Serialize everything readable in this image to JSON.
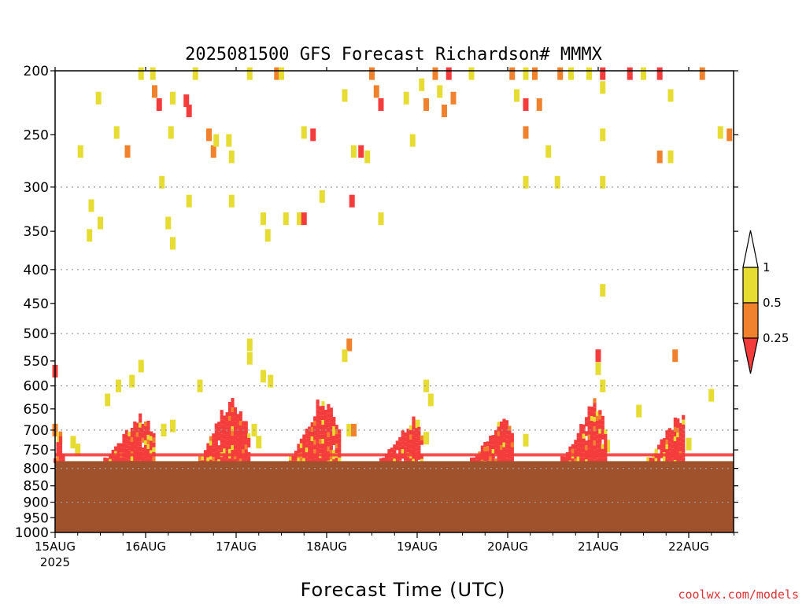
{
  "chart_data": {
    "type": "heatmap",
    "title": "2025081500 GFS Forecast Richardson# MMMX",
    "xlabel": "Forecast Time (UTC)",
    "ylabel": "",
    "x_ticks": [
      {
        "label": "15AUG",
        "sub": "2025",
        "day": 0
      },
      {
        "label": "16AUG",
        "day": 1
      },
      {
        "label": "17AUG",
        "day": 2
      },
      {
        "label": "18AUG",
        "day": 3
      },
      {
        "label": "19AUG",
        "day": 4
      },
      {
        "label": "20AUG",
        "day": 5
      },
      {
        "label": "21AUG",
        "day": 6
      },
      {
        "label": "22AUG",
        "day": 7
      }
    ],
    "xlim_days": [
      0,
      7.5
    ],
    "ylim_hpa": [
      1000,
      200
    ],
    "y_scale": "log-pressure",
    "y_ticks": [
      200,
      250,
      300,
      350,
      400,
      450,
      500,
      550,
      600,
      650,
      700,
      750,
      800,
      850,
      900,
      950,
      1000
    ],
    "grid_levels": [
      300,
      400,
      500,
      600,
      700,
      800,
      900,
      1000
    ],
    "surface_hpa": 780,
    "colorbar": {
      "levels": [
        "0.25",
        "0.5",
        "1"
      ],
      "bins": [
        {
          "range": "< 0.25",
          "color": "#f53c3c"
        },
        {
          "range": "0.25 - 0.5",
          "color": "#f0822d"
        },
        {
          "range": "0.5 - 1",
          "color": "#e6dc32"
        },
        {
          "range": "> 1",
          "color": "#ffffff"
        }
      ]
    },
    "colors": {
      "red": "#f53c3c",
      "orange": "#f0822d",
      "yellow": "#e6dc32",
      "terrain": "#a0522d"
    },
    "cells": [
      {
        "t": 0.95,
        "p": 202,
        "c": "yellow"
      },
      {
        "t": 1.08,
        "p": 202,
        "c": "yellow"
      },
      {
        "t": 1.1,
        "p": 215,
        "c": "orange"
      },
      {
        "t": 1.15,
        "p": 225,
        "c": "red"
      },
      {
        "t": 1.3,
        "p": 220,
        "c": "yellow"
      },
      {
        "t": 1.45,
        "p": 222,
        "c": "red"
      },
      {
        "t": 1.48,
        "p": 230,
        "c": "red"
      },
      {
        "t": 1.55,
        "p": 202,
        "c": "yellow"
      },
      {
        "t": 1.7,
        "p": 250,
        "c": "orange"
      },
      {
        "t": 1.75,
        "p": 265,
        "c": "orange"
      },
      {
        "t": 1.78,
        "p": 255,
        "c": "yellow"
      },
      {
        "t": 1.92,
        "p": 255,
        "c": "yellow"
      },
      {
        "t": 1.95,
        "p": 270,
        "c": "yellow"
      },
      {
        "t": 2.15,
        "p": 202,
        "c": "yellow"
      },
      {
        "t": 2.45,
        "p": 202,
        "c": "orange"
      },
      {
        "t": 2.5,
        "p": 202,
        "c": "yellow"
      },
      {
        "t": 2.75,
        "p": 248,
        "c": "yellow"
      },
      {
        "t": 2.85,
        "p": 250,
        "c": "red"
      },
      {
        "t": 3.2,
        "p": 218,
        "c": "yellow"
      },
      {
        "t": 3.3,
        "p": 265,
        "c": "yellow"
      },
      {
        "t": 3.38,
        "p": 265,
        "c": "red"
      },
      {
        "t": 3.45,
        "p": 270,
        "c": "yellow"
      },
      {
        "t": 3.5,
        "p": 202,
        "c": "orange"
      },
      {
        "t": 3.55,
        "p": 215,
        "c": "orange"
      },
      {
        "t": 3.6,
        "p": 225,
        "c": "red"
      },
      {
        "t": 3.88,
        "p": 220,
        "c": "yellow"
      },
      {
        "t": 3.95,
        "p": 255,
        "c": "yellow"
      },
      {
        "t": 4.05,
        "p": 210,
        "c": "yellow"
      },
      {
        "t": 4.1,
        "p": 225,
        "c": "orange"
      },
      {
        "t": 4.2,
        "p": 202,
        "c": "orange"
      },
      {
        "t": 4.25,
        "p": 215,
        "c": "yellow"
      },
      {
        "t": 4.3,
        "p": 230,
        "c": "orange"
      },
      {
        "t": 4.35,
        "p": 202,
        "c": "red"
      },
      {
        "t": 4.4,
        "p": 220,
        "c": "orange"
      },
      {
        "t": 4.6,
        "p": 202,
        "c": "yellow"
      },
      {
        "t": 5.05,
        "p": 202,
        "c": "orange"
      },
      {
        "t": 5.2,
        "p": 202,
        "c": "yellow"
      },
      {
        "t": 5.3,
        "p": 202,
        "c": "orange"
      },
      {
        "t": 5.2,
        "p": 225,
        "c": "red"
      },
      {
        "t": 5.2,
        "p": 248,
        "c": "orange"
      },
      {
        "t": 5.35,
        "p": 225,
        "c": "orange"
      },
      {
        "t": 5.1,
        "p": 218,
        "c": "yellow"
      },
      {
        "t": 5.2,
        "p": 295,
        "c": "yellow"
      },
      {
        "t": 5.45,
        "p": 265,
        "c": "yellow"
      },
      {
        "t": 5.55,
        "p": 295,
        "c": "yellow"
      },
      {
        "t": 5.58,
        "p": 202,
        "c": "orange"
      },
      {
        "t": 5.7,
        "p": 202,
        "c": "yellow"
      },
      {
        "t": 5.9,
        "p": 202,
        "c": "yellow"
      },
      {
        "t": 6.05,
        "p": 202,
        "c": "red"
      },
      {
        "t": 6.05,
        "p": 212,
        "c": "yellow"
      },
      {
        "t": 6.05,
        "p": 250,
        "c": "yellow"
      },
      {
        "t": 6.05,
        "p": 295,
        "c": "yellow"
      },
      {
        "t": 6.35,
        "p": 202,
        "c": "red"
      },
      {
        "t": 6.5,
        "p": 202,
        "c": "yellow"
      },
      {
        "t": 6.68,
        "p": 202,
        "c": "red"
      },
      {
        "t": 6.68,
        "p": 270,
        "c": "orange"
      },
      {
        "t": 6.8,
        "p": 270,
        "c": "yellow"
      },
      {
        "t": 6.8,
        "p": 218,
        "c": "yellow"
      },
      {
        "t": 7.15,
        "p": 202,
        "c": "orange"
      },
      {
        "t": 7.35,
        "p": 248,
        "c": "yellow"
      },
      {
        "t": 7.45,
        "p": 250,
        "c": "orange"
      },
      {
        "t": 0.28,
        "p": 265,
        "c": "yellow"
      },
      {
        "t": 0.48,
        "p": 220,
        "c": "yellow"
      },
      {
        "t": 0.68,
        "p": 248,
        "c": "yellow"
      },
      {
        "t": 0.8,
        "p": 265,
        "c": "orange"
      },
      {
        "t": 1.18,
        "p": 295,
        "c": "yellow"
      },
      {
        "t": 1.28,
        "p": 248,
        "c": "yellow"
      },
      {
        "t": 1.48,
        "p": 315,
        "c": "yellow"
      },
      {
        "t": 1.95,
        "p": 315,
        "c": "yellow"
      },
      {
        "t": 2.3,
        "p": 335,
        "c": "yellow"
      },
      {
        "t": 2.35,
        "p": 355,
        "c": "yellow"
      },
      {
        "t": 2.55,
        "p": 335,
        "c": "yellow"
      },
      {
        "t": 2.7,
        "p": 335,
        "c": "yellow"
      },
      {
        "t": 2.75,
        "p": 335,
        "c": "red"
      },
      {
        "t": 2.95,
        "p": 310,
        "c": "yellow"
      },
      {
        "t": 3.28,
        "p": 315,
        "c": "red"
      },
      {
        "t": 3.6,
        "p": 335,
        "c": "yellow"
      },
      {
        "t": 0.4,
        "p": 320,
        "c": "yellow"
      },
      {
        "t": 0.5,
        "p": 340,
        "c": "yellow"
      },
      {
        "t": 0.38,
        "p": 355,
        "c": "yellow"
      },
      {
        "t": 1.25,
        "p": 340,
        "c": "yellow"
      },
      {
        "t": 1.3,
        "p": 365,
        "c": "yellow"
      },
      {
        "t": 6.05,
        "p": 430,
        "c": "yellow"
      },
      {
        "t": 0.0,
        "p": 570,
        "c": "red"
      },
      {
        "t": 0.95,
        "p": 560,
        "c": "yellow"
      },
      {
        "t": 0.85,
        "p": 590,
        "c": "yellow"
      },
      {
        "t": 0.7,
        "p": 600,
        "c": "yellow"
      },
      {
        "t": 0.58,
        "p": 630,
        "c": "yellow"
      },
      {
        "t": 1.6,
        "p": 600,
        "c": "yellow"
      },
      {
        "t": 2.15,
        "p": 520,
        "c": "yellow"
      },
      {
        "t": 2.15,
        "p": 545,
        "c": "yellow"
      },
      {
        "t": 2.3,
        "p": 580,
        "c": "yellow"
      },
      {
        "t": 2.38,
        "p": 590,
        "c": "yellow"
      },
      {
        "t": 3.25,
        "p": 520,
        "c": "orange"
      },
      {
        "t": 3.2,
        "p": 540,
        "c": "yellow"
      },
      {
        "t": 4.15,
        "p": 630,
        "c": "yellow"
      },
      {
        "t": 4.1,
        "p": 600,
        "c": "yellow"
      },
      {
        "t": 6.0,
        "p": 540,
        "c": "red"
      },
      {
        "t": 6.0,
        "p": 565,
        "c": "yellow"
      },
      {
        "t": 6.05,
        "p": 600,
        "c": "yellow"
      },
      {
        "t": 6.85,
        "p": 540,
        "c": "orange"
      },
      {
        "t": 7.25,
        "p": 620,
        "c": "yellow"
      },
      {
        "t": 6.45,
        "p": 655,
        "c": "yellow"
      },
      {
        "t": 2.2,
        "p": 700,
        "c": "yellow"
      },
      {
        "t": 2.25,
        "p": 730,
        "c": "yellow"
      },
      {
        "t": 1.3,
        "p": 690,
        "c": "yellow"
      },
      {
        "t": 1.2,
        "p": 700,
        "c": "yellow"
      },
      {
        "t": 3.25,
        "p": 700,
        "c": "yellow"
      },
      {
        "t": 3.3,
        "p": 700,
        "c": "orange"
      },
      {
        "t": 4.0,
        "p": 690,
        "c": "yellow"
      },
      {
        "t": 4.1,
        "p": 720,
        "c": "yellow"
      },
      {
        "t": 5.2,
        "p": 725,
        "c": "yellow"
      },
      {
        "t": 6.1,
        "p": 740,
        "c": "yellow"
      },
      {
        "t": 7.0,
        "p": 735,
        "c": "yellow"
      },
      {
        "t": 0.0,
        "p": 700,
        "c": "orange"
      },
      {
        "t": 0.05,
        "p": 720,
        "c": "yellow"
      },
      {
        "t": 0.2,
        "p": 730,
        "c": "yellow"
      },
      {
        "t": 0.25,
        "p": 750,
        "c": "yellow"
      }
    ],
    "plumes": [
      {
        "t0": 0.55,
        "t1": 1.1,
        "top": 650,
        "peak": 0.95
      },
      {
        "t0": 1.6,
        "t1": 2.15,
        "top": 600,
        "peak": 1.95
      },
      {
        "t0": 2.6,
        "t1": 3.15,
        "top": 600,
        "peak": 2.95
      },
      {
        "t0": 3.6,
        "t1": 4.05,
        "top": 660,
        "peak": 3.95
      },
      {
        "t0": 4.6,
        "t1": 5.05,
        "top": 660,
        "peak": 4.95
      },
      {
        "t0": 5.6,
        "t1": 6.1,
        "top": 620,
        "peak": 5.95
      },
      {
        "t0": 6.55,
        "t1": 6.95,
        "top": 650,
        "peak": 6.9
      },
      {
        "t0": 0.0,
        "t1": 0.1,
        "top": 680,
        "peak": 0.05
      }
    ]
  },
  "watermark": "coolwx.com/models"
}
